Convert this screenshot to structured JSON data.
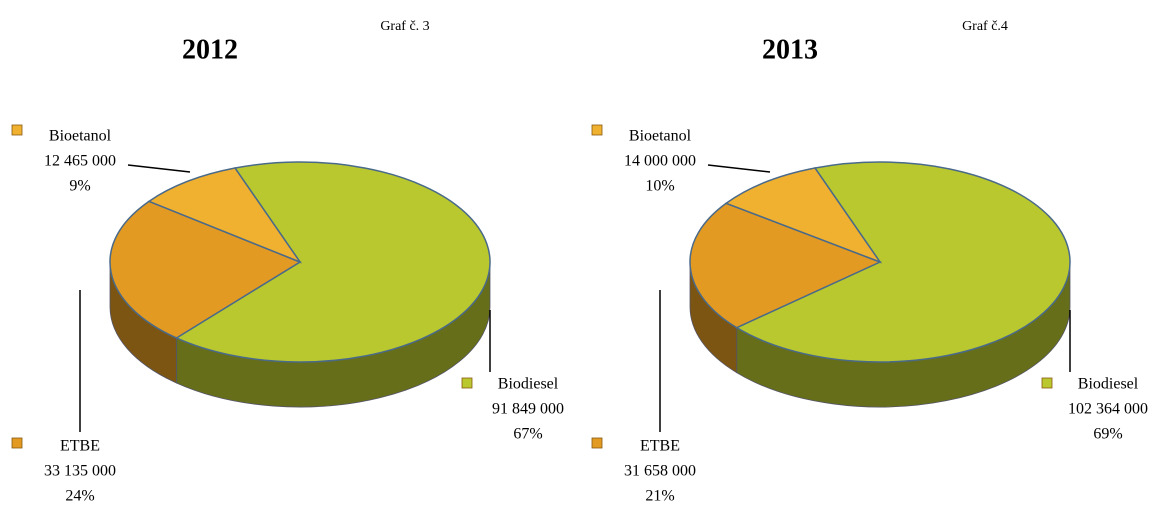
{
  "chart_data": [
    {
      "type": "pie",
      "caption": "Graf č. 3",
      "title": "2012",
      "categories": [
        "Biodiesel",
        "ETBE",
        "Bioetanol"
      ],
      "values": [
        91849000,
        33135000,
        12465000
      ],
      "value_labels": [
        "91 849 000",
        "33 135 000",
        "12 465 000"
      ],
      "percentages": [
        67,
        24,
        9
      ],
      "percentage_labels": [
        "67%",
        "24%",
        "9%"
      ],
      "colors": [
        "#b9c82e",
        "#e29a22",
        "#f0b030"
      ]
    },
    {
      "type": "pie",
      "caption": "Graf č.4",
      "title": "2013",
      "categories": [
        "Biodiesel",
        "ETBE",
        "Bioetanol"
      ],
      "values": [
        102364000,
        31658000,
        14000000
      ],
      "value_labels": [
        "102 364 000",
        "31 658 000",
        "14 000 000"
      ],
      "percentages": [
        69,
        21,
        10
      ],
      "percentage_labels": [
        "69%",
        "21%",
        "10%"
      ],
      "colors": [
        "#b9c82e",
        "#e29a22",
        "#f0b030"
      ]
    }
  ]
}
